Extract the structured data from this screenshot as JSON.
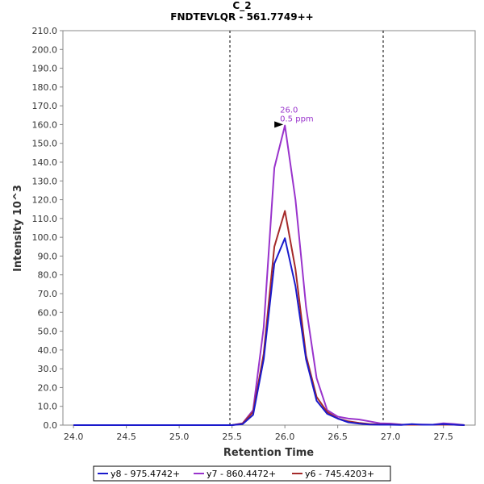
{
  "chart_data": {
    "type": "line",
    "title": "C_2",
    "subtitle": "FNDTEVLQR - 561.7749++",
    "xlabel": "Retention Time",
    "ylabel": "Intensity 10^3",
    "xlim": [
      23.9,
      27.8
    ],
    "ylim": [
      0,
      210
    ],
    "x_ticks": [
      "24.0",
      "24.5",
      "25.0",
      "25.5",
      "26.0",
      "26.5",
      "27.0",
      "27.5"
    ],
    "y_ticks": [
      "0.0",
      "10.0",
      "20.0",
      "30.0",
      "40.0",
      "50.0",
      "60.0",
      "70.0",
      "80.0",
      "90.0",
      "100.0",
      "110.0",
      "120.0",
      "130.0",
      "140.0",
      "150.0",
      "160.0",
      "170.0",
      "180.0",
      "190.0",
      "200.0",
      "210.0"
    ],
    "boundaries": [
      25.48,
      26.93
    ],
    "annotation": {
      "x": 26.0,
      "y": 160,
      "lines": [
        "26.0",
        "0.5 ppm"
      ],
      "color": "#9933cc"
    },
    "x": [
      24.0,
      24.1,
      24.2,
      24.3,
      24.4,
      24.5,
      24.6,
      24.7,
      24.8,
      24.9,
      25.0,
      25.1,
      25.2,
      25.3,
      25.4,
      25.5,
      25.6,
      25.7,
      25.8,
      25.9,
      26.0,
      26.1,
      26.2,
      26.3,
      26.4,
      26.5,
      26.6,
      26.7,
      26.8,
      26.9,
      27.0,
      27.1,
      27.2,
      27.3,
      27.4,
      27.5,
      27.6,
      27.7
    ],
    "series": [
      {
        "name": "y8 - 975.4742+",
        "color": "#1a1acc",
        "values": [
          0,
          0,
          0,
          0,
          0,
          0,
          0,
          0,
          0,
          0,
          0,
          0,
          0,
          0,
          0,
          0,
          0.5,
          5.5,
          35,
          86,
          99.5,
          74,
          35,
          13,
          6,
          3.5,
          1.5,
          0.8,
          0.3,
          0.2,
          0.2,
          0.1,
          0.5,
          0.2,
          0.2,
          0.5,
          0.2,
          0
        ]
      },
      {
        "name": "y7 - 860.4472+",
        "color": "#9933cc",
        "values": [
          0,
          0,
          0,
          0,
          0,
          0,
          0,
          0,
          0,
          0,
          0,
          0,
          0,
          0,
          0,
          0,
          1,
          8,
          52,
          137,
          159.5,
          120,
          63,
          25,
          8,
          4.5,
          3.5,
          3,
          2,
          1,
          0.8,
          0.3,
          0.2,
          0.3,
          0.2,
          1,
          0.6,
          0
        ]
      },
      {
        "name": "y6 - 745.4203+",
        "color": "#a52a2a",
        "values": [
          0,
          0,
          0,
          0,
          0,
          0,
          0,
          0,
          0,
          0,
          0,
          0,
          0,
          0,
          0,
          0,
          0.8,
          7,
          38,
          95,
          114,
          83,
          37,
          15,
          7,
          3.5,
          2,
          1.2,
          0.6,
          0.4,
          0.3,
          0.2,
          0.2,
          0.2,
          0.2,
          0.3,
          0.2,
          0
        ]
      }
    ],
    "grid": false,
    "legend_position": "bottom"
  }
}
